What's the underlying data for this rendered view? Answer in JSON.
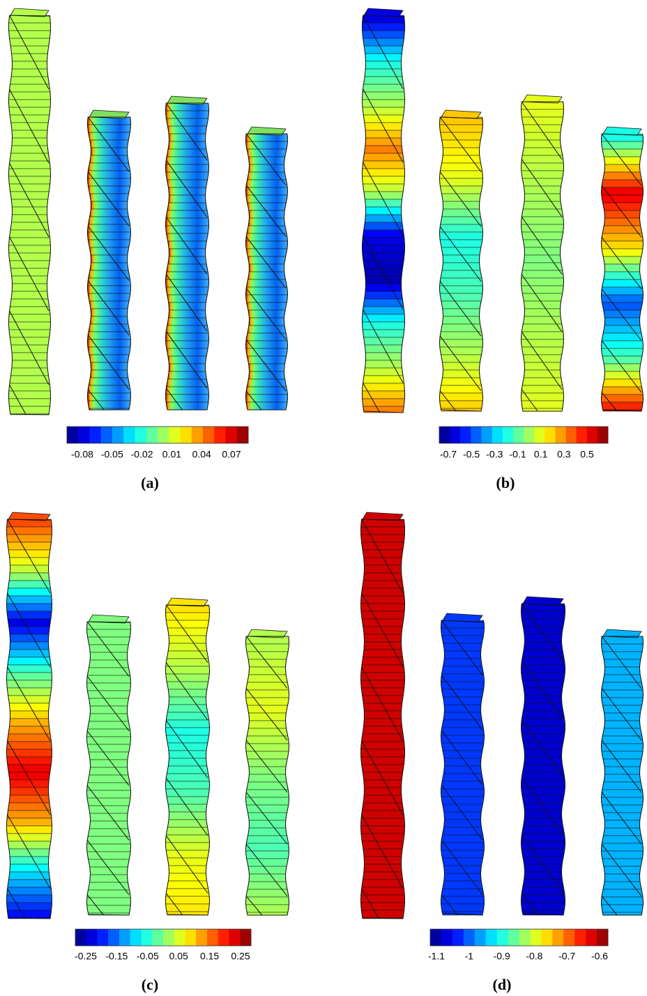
{
  "panels": [
    {
      "label": "(a)",
      "colorbar_labels": [
        "-0.08",
        "-0.05",
        "-0.02",
        "0.01",
        "0.04",
        "0.07"
      ]
    },
    {
      "label": "(b)",
      "colorbar_labels": [
        "-0.7",
        "-0.5",
        "-0.3",
        "-0.1",
        "0.1",
        "0.3",
        "0.5"
      ]
    },
    {
      "label": "(c)",
      "colorbar_labels": [
        "-0.25",
        "-0.15",
        "-0.05",
        "0.05",
        "0.15",
        "0.25"
      ]
    },
    {
      "label": "(d)",
      "colorbar_labels": [
        "-1.1",
        "-1",
        "-0.9",
        "-0.8",
        "-0.7",
        "-0.6"
      ]
    }
  ]
}
